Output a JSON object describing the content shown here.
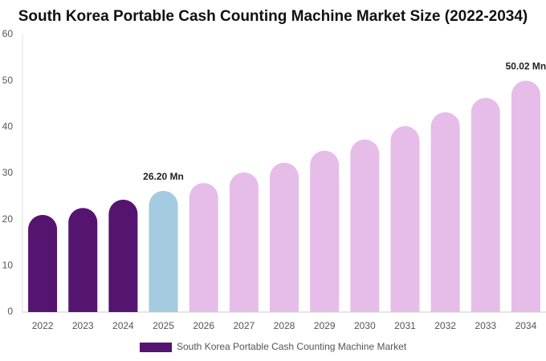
{
  "chart_data": {
    "type": "bar",
    "title": "South Korea Portable Cash Counting Machine Market Size (2022-2034)",
    "categories": [
      "2022",
      "2023",
      "2024",
      "2025",
      "2026",
      "2027",
      "2028",
      "2029",
      "2030",
      "2031",
      "2032",
      "2033",
      "2034"
    ],
    "series": [
      {
        "name": "South Korea Portable Cash Counting Machine Market",
        "color": "#551470",
        "colors": [
          "#551470",
          "#551470",
          "#551470",
          "#a4cbe0",
          "#e6bde9",
          "#e6bde9",
          "#e6bde9",
          "#e6bde9",
          "#e6bde9",
          "#e6bde9",
          "#e6bde9",
          "#e6bde9",
          "#e6bde9"
        ],
        "values": [
          21.0,
          22.5,
          24.3,
          26.2,
          27.9,
          30.2,
          32.3,
          34.9,
          37.3,
          40.2,
          43.2,
          46.3,
          50.02
        ],
        "value_labels": [
          null,
          null,
          null,
          "26.20 Mn",
          null,
          null,
          null,
          null,
          null,
          null,
          null,
          null,
          "50.02 Mn"
        ]
      }
    ],
    "ylim": [
      0,
      60
    ],
    "yticks": [
      0,
      10,
      20,
      30,
      40,
      50,
      60
    ],
    "grid": false,
    "legend": "bottom"
  }
}
